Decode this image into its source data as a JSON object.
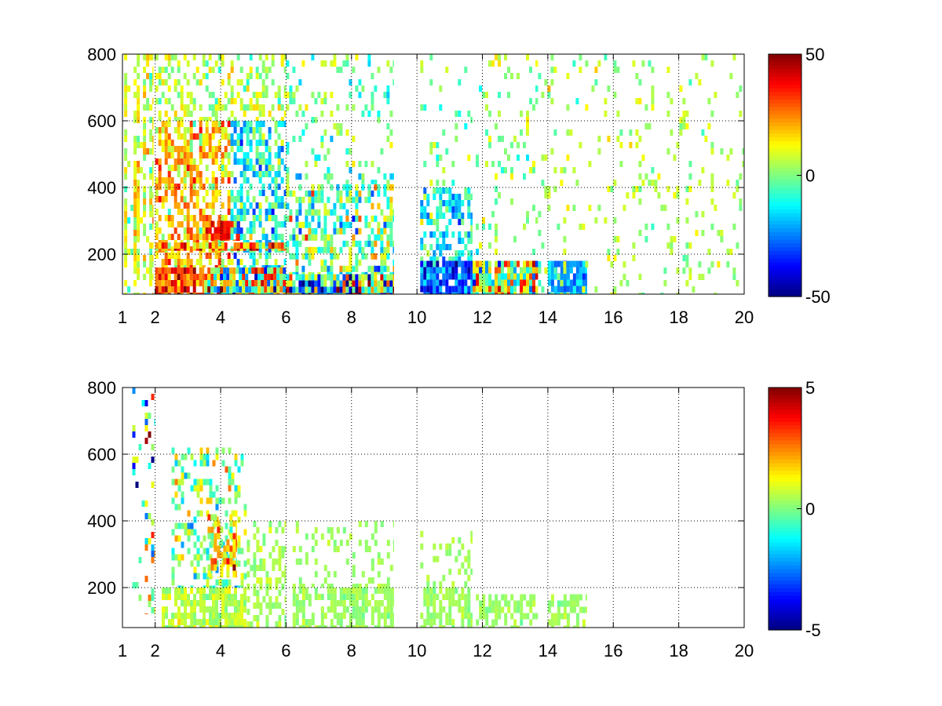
{
  "chart_data": [
    {
      "type": "heatmap",
      "title": "",
      "xlabel": "",
      "ylabel": "",
      "xlim": [
        1,
        20
      ],
      "ylim": [
        80,
        800
      ],
      "x_ticks": [
        "1",
        "2",
        "4",
        "6",
        "8",
        "10",
        "12",
        "14",
        "16",
        "18",
        "20"
      ],
      "y_ticks": [
        "200",
        "400",
        "600",
        "800"
      ],
      "grid": true,
      "colormap": "jet",
      "color_range": [
        -50,
        50
      ],
      "colorbar_ticks": [
        "50",
        "0",
        "-50"
      ],
      "regions": [
        {
          "x": [
            1.05,
            1.95
          ],
          "y": [
            80,
            800
          ],
          "density": 0.45,
          "mean": 8,
          "spread": 10,
          "streak": "vertical"
        },
        {
          "x": [
            2.0,
            3.5
          ],
          "y": [
            80,
            160
          ],
          "density": 0.95,
          "mean": 32,
          "spread": 12
        },
        {
          "x": [
            3.5,
            6.0
          ],
          "y": [
            80,
            160
          ],
          "density": 0.95,
          "mean": 5,
          "spread": 35
        },
        {
          "x": [
            2.0,
            4.3
          ],
          "y": [
            160,
            600
          ],
          "density": 0.6,
          "mean": 18,
          "spread": 14
        },
        {
          "x": [
            3.7,
            4.6
          ],
          "y": [
            240,
            300
          ],
          "density": 0.9,
          "mean": 38,
          "spread": 8
        },
        {
          "x": [
            4.3,
            6.0
          ],
          "y": [
            160,
            600
          ],
          "density": 0.55,
          "mean": -12,
          "spread": 16
        },
        {
          "x": [
            2.0,
            6.0
          ],
          "y": [
            210,
            235
          ],
          "density": 0.85,
          "mean": 25,
          "spread": 20
        },
        {
          "x": [
            2.0,
            6.0
          ],
          "y": [
            600,
            800
          ],
          "density": 0.35,
          "mean": 5,
          "spread": 10
        },
        {
          "x": [
            6.0,
            9.3
          ],
          "y": [
            80,
            140
          ],
          "density": 0.95,
          "mean": -5,
          "spread": 40
        },
        {
          "x": [
            6.0,
            9.3
          ],
          "y": [
            140,
            410
          ],
          "density": 0.5,
          "mean": -2,
          "spread": 20
        },
        {
          "x": [
            6.0,
            9.3
          ],
          "y": [
            410,
            800
          ],
          "density": 0.18,
          "mean": -2,
          "spread": 12
        },
        {
          "x": [
            10.1,
            11.7
          ],
          "y": [
            80,
            180
          ],
          "density": 0.95,
          "mean": -28,
          "spread": 14
        },
        {
          "x": [
            10.1,
            11.7
          ],
          "y": [
            180,
            400
          ],
          "density": 0.55,
          "mean": -12,
          "spread": 14
        },
        {
          "x": [
            10.1,
            11.7
          ],
          "y": [
            400,
            800
          ],
          "density": 0.12,
          "mean": 0,
          "spread": 10
        },
        {
          "x": [
            11.7,
            13.7
          ],
          "y": [
            80,
            180
          ],
          "density": 0.95,
          "mean": 8,
          "spread": 28
        },
        {
          "x": [
            11.7,
            13.7
          ],
          "y": [
            180,
            800
          ],
          "density": 0.12,
          "mean": 2,
          "spread": 10
        },
        {
          "x": [
            14.0,
            15.2
          ],
          "y": [
            80,
            180
          ],
          "density": 0.9,
          "mean": -22,
          "spread": 8
        },
        {
          "x": [
            13.7,
            20.0
          ],
          "y": [
            80,
            800
          ],
          "density": 0.1,
          "mean": 4,
          "spread": 8
        }
      ]
    },
    {
      "type": "heatmap",
      "title": "",
      "xlabel": "",
      "ylabel": "",
      "xlim": [
        1,
        20
      ],
      "ylim": [
        80,
        800
      ],
      "x_ticks": [
        "1",
        "2",
        "4",
        "6",
        "8",
        "10",
        "12",
        "14",
        "16",
        "18",
        "20"
      ],
      "y_ticks": [
        "200",
        "400",
        "600",
        "800"
      ],
      "grid": true,
      "colormap": "jet",
      "color_range": [
        -5,
        5
      ],
      "colorbar_ticks": [
        "5",
        "0",
        "-5"
      ],
      "regions": [
        {
          "x": [
            1.3,
            2.0
          ],
          "y": [
            120,
            800
          ],
          "density": 0.18,
          "mean": 0,
          "spread": 3.5,
          "streak": "vertical"
        },
        {
          "x": [
            2.2,
            4.8
          ],
          "y": [
            80,
            200
          ],
          "density": 0.8,
          "mean": 0.6,
          "spread": 0.6
        },
        {
          "x": [
            2.5,
            4.8
          ],
          "y": [
            200,
            620
          ],
          "density": 0.35,
          "mean": 0,
          "spread": 1.6
        },
        {
          "x": [
            3.6,
            4.5
          ],
          "y": [
            230,
            420
          ],
          "density": 0.6,
          "mean": 1.6,
          "spread": 1.6
        },
        {
          "x": [
            4.8,
            6.0
          ],
          "y": [
            80,
            400
          ],
          "density": 0.4,
          "mean": 0.4,
          "spread": 0.4
        },
        {
          "x": [
            6.2,
            9.3
          ],
          "y": [
            80,
            200
          ],
          "density": 0.7,
          "mean": 0.3,
          "spread": 0.3
        },
        {
          "x": [
            6.2,
            9.3
          ],
          "y": [
            200,
            400
          ],
          "density": 0.22,
          "mean": 0.3,
          "spread": 0.3
        },
        {
          "x": [
            10.1,
            11.7
          ],
          "y": [
            80,
            200
          ],
          "density": 0.6,
          "mean": 0.3,
          "spread": 0.3
        },
        {
          "x": [
            10.1,
            11.7
          ],
          "y": [
            200,
            370
          ],
          "density": 0.15,
          "mean": 0.3,
          "spread": 0.3
        },
        {
          "x": [
            11.8,
            13.7
          ],
          "y": [
            80,
            180
          ],
          "density": 0.5,
          "mean": 0.3,
          "spread": 0.3
        },
        {
          "x": [
            14.0,
            15.2
          ],
          "y": [
            80,
            180
          ],
          "density": 0.45,
          "mean": 0.3,
          "spread": 0.3
        }
      ]
    }
  ]
}
